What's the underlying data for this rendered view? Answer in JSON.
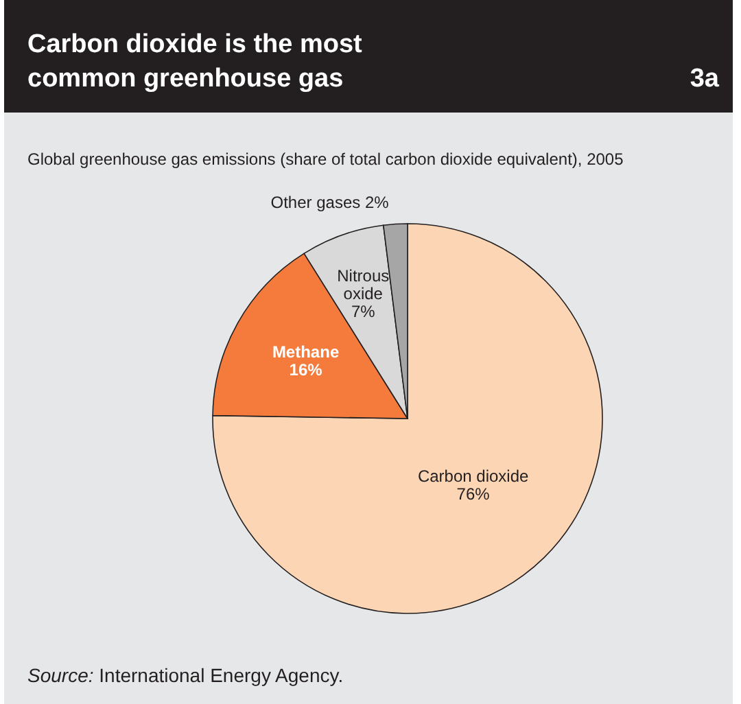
{
  "chart_data": {
    "type": "pie",
    "title": "Carbon dioxide is the most common greenhouse gas",
    "subtitle": "Global greenhouse gas emissions (share of total carbon dioxide equivalent), 2005",
    "categories": [
      "Carbon dioxide",
      "Methane",
      "Nitrous oxide",
      "Other gases"
    ],
    "values": [
      76,
      16,
      7,
      2
    ],
    "value_labels": [
      "76%",
      "16%",
      "7%",
      "2%"
    ],
    "colors": [
      "#fcd5b5",
      "#f47b3b",
      "#d9d9d9",
      "#a6a6a6"
    ],
    "annotations": [
      "3a",
      "Source: International Energy Agency."
    ]
  }
}
